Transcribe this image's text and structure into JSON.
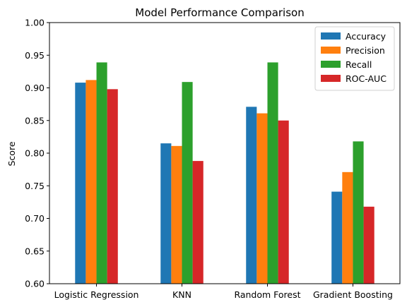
{
  "chart_data": {
    "type": "bar",
    "title": "Model Performance Comparison",
    "xlabel": "",
    "ylabel": "Score",
    "ylim": [
      0.6,
      1.0
    ],
    "yticks": [
      0.6,
      0.65,
      0.7,
      0.75,
      0.8,
      0.85,
      0.9,
      0.95,
      1.0
    ],
    "ytick_labels": [
      "0.60",
      "0.65",
      "0.70",
      "0.75",
      "0.80",
      "0.85",
      "0.90",
      "0.95",
      "1.00"
    ],
    "categories": [
      "Logistic Regression",
      "KNN",
      "Random Forest",
      "Gradient Boosting"
    ],
    "series": [
      {
        "name": "Accuracy",
        "color": "#1f77b4",
        "values": [
          0.908,
          0.815,
          0.871,
          0.741
        ]
      },
      {
        "name": "Precision",
        "color": "#ff7f0e",
        "values": [
          0.912,
          0.811,
          0.861,
          0.771
        ]
      },
      {
        "name": "Recall",
        "color": "#2ca02c",
        "values": [
          0.939,
          0.909,
          0.939,
          0.818
        ]
      },
      {
        "name": "ROC-AUC",
        "color": "#d62728",
        "values": [
          0.898,
          0.788,
          0.85,
          0.718
        ]
      }
    ],
    "legend_position": "top-right",
    "grid": false
  }
}
